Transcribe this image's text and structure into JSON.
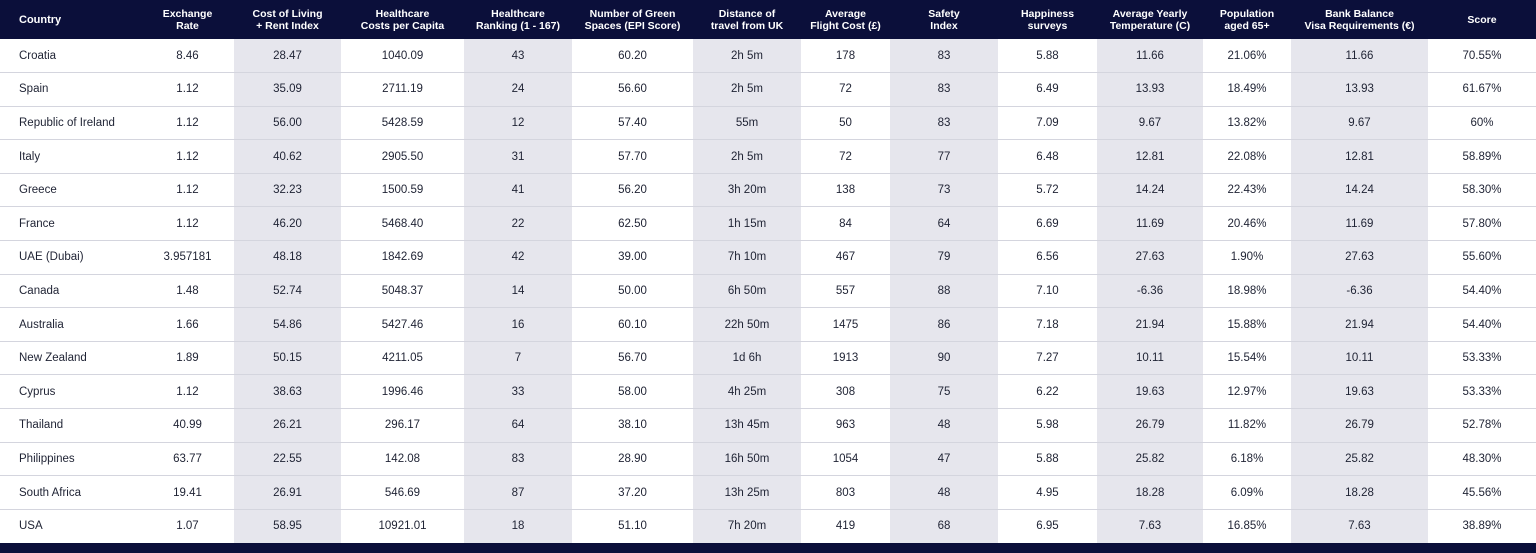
{
  "table": {
    "headers": [
      "Country",
      "Exchange\nRate",
      "Cost of Living\n+ Rent Index",
      "Healthcare\nCosts per Capita",
      "Healthcare\nRanking (1 - 167)",
      "Number of Green\nSpaces (EPI Score)",
      "Distance of\ntravel from UK",
      "Average\nFlight Cost (£)",
      "Safety\nIndex",
      "Happiness\nsurveys",
      "Average Yearly\nTemperature (C)",
      "Population\naged 65+",
      "Bank Balance\nVisa Requirements (€)",
      "Score"
    ],
    "rows": [
      [
        "Croatia",
        "8.46",
        "28.47",
        "1040.09",
        "43",
        "60.20",
        "2h 5m",
        "178",
        "83",
        "5.88",
        "11.66",
        "21.06%",
        "11.66",
        "70.55%"
      ],
      [
        "Spain",
        "1.12",
        "35.09",
        "2711.19",
        "24",
        "56.60",
        "2h 5m",
        "72",
        "83",
        "6.49",
        "13.93",
        "18.49%",
        "13.93",
        "61.67%"
      ],
      [
        "Republic of Ireland",
        "1.12",
        "56.00",
        "5428.59",
        "12",
        "57.40",
        "55m",
        "50",
        "83",
        "7.09",
        "9.67",
        "13.82%",
        "9.67",
        "60%"
      ],
      [
        "Italy",
        "1.12",
        "40.62",
        "2905.50",
        "31",
        "57.70",
        "2h 5m",
        "72",
        "77",
        "6.48",
        "12.81",
        "22.08%",
        "12.81",
        "58.89%"
      ],
      [
        "Greece",
        "1.12",
        "32.23",
        "1500.59",
        "41",
        "56.20",
        "3h 20m",
        "138",
        "73",
        "5.72",
        "14.24",
        "22.43%",
        "14.24",
        "58.30%"
      ],
      [
        "France",
        "1.12",
        "46.20",
        "5468.40",
        "22",
        "62.50",
        "1h 15m",
        "84",
        "64",
        "6.69",
        "11.69",
        "20.46%",
        "11.69",
        "57.80%"
      ],
      [
        "UAE (Dubai)",
        "3.957181",
        "48.18",
        "1842.69",
        "42",
        "39.00",
        "7h 10m",
        "467",
        "79",
        "6.56",
        "27.63",
        "1.90%",
        "27.63",
        "55.60%"
      ],
      [
        "Canada",
        "1.48",
        "52.74",
        "5048.37",
        "14",
        "50.00",
        "6h 50m",
        "557",
        "88",
        "7.10",
        "-6.36",
        "18.98%",
        "-6.36",
        "54.40%"
      ],
      [
        "Australia",
        "1.66",
        "54.86",
        "5427.46",
        "16",
        "60.10",
        "22h 50m",
        "1475",
        "86",
        "7.18",
        "21.94",
        "15.88%",
        "21.94",
        "54.40%"
      ],
      [
        "New Zealand",
        "1.89",
        "50.15",
        "4211.05",
        "7",
        "56.70",
        "1d 6h",
        "1913",
        "90",
        "7.27",
        "10.11",
        "15.54%",
        "10.11",
        "53.33%"
      ],
      [
        "Cyprus",
        "1.12",
        "38.63",
        "1996.46",
        "33",
        "58.00",
        "4h 25m",
        "308",
        "75",
        "6.22",
        "19.63",
        "12.97%",
        "19.63",
        "53.33%"
      ],
      [
        "Thailand",
        "40.99",
        "26.21",
        "296.17",
        "64",
        "38.10",
        "13h 45m",
        "963",
        "48",
        "5.98",
        "26.79",
        "11.82%",
        "26.79",
        "52.78%"
      ],
      [
        "Philippines",
        "63.77",
        "22.55",
        "142.08",
        "83",
        "28.90",
        "16h 50m",
        "1054",
        "47",
        "5.88",
        "25.82",
        "6.18%",
        "25.82",
        "48.30%"
      ],
      [
        "South Africa",
        "19.41",
        "26.91",
        "546.69",
        "87",
        "37.20",
        "13h 25m",
        "803",
        "48",
        "4.95",
        "18.28",
        "6.09%",
        "18.28",
        "45.56%"
      ],
      [
        "USA",
        "1.07",
        "58.95",
        "10921.01",
        "18",
        "51.10",
        "7h 20m",
        "419",
        "68",
        "6.95",
        "7.63",
        "16.85%",
        "7.63",
        "38.89%"
      ]
    ]
  },
  "colors": {
    "header_bg": "#0b0f3a",
    "header_text": "#ffffff",
    "shaded_column": "#e6e6ed",
    "plain_column": "#ffffff"
  }
}
